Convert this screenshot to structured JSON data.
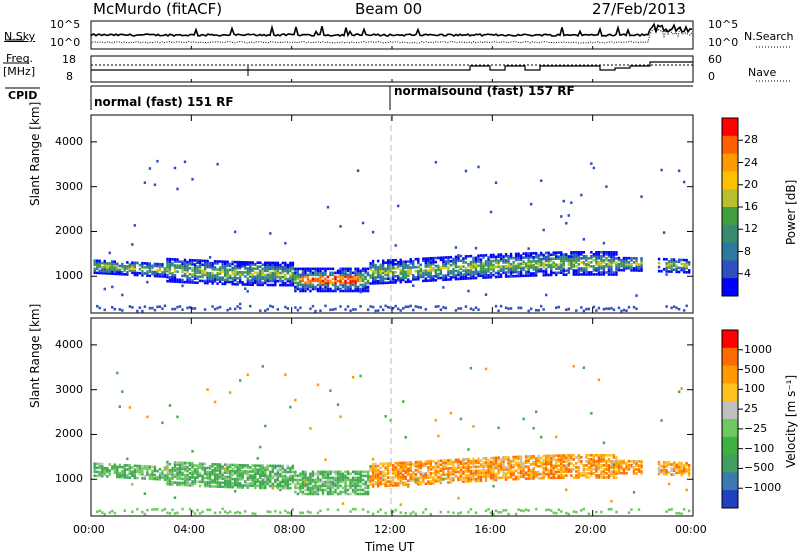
{
  "header": {
    "station": "McMurdo (fitACF)",
    "beam": "Beam 00",
    "date": "27/Feb/2013"
  },
  "nsky_panel": {
    "left_label": "N.Sky",
    "left_ticks": [
      "10^5",
      "10^0"
    ],
    "right_label": "N.Search",
    "right_ticks": [
      "10^5",
      "10^0"
    ]
  },
  "freq_panel": {
    "left_label_1": "Freq.",
    "left_label_2": "[MHz]",
    "left_ticks": [
      "18",
      "8"
    ],
    "right_label": "Nave",
    "right_ticks": [
      "60",
      "0"
    ]
  },
  "cpid_panel": {
    "label": "CPID",
    "segments": [
      {
        "text": "normal (fast) 151 RF",
        "start_hour": 0
      },
      {
        "text": "normalsound (fast) 157 RF",
        "start_hour": 12
      }
    ]
  },
  "colors": {
    "scale": [
      "#ff0000",
      "#ff6000",
      "#ff9a00",
      "#ffc000",
      "#b8c030",
      "#40a040",
      "#3a8a70",
      "#2a7aa0",
      "#3050c0",
      "#0000ff"
    ],
    "velocity": [
      "#ff0000",
      "#ff6a00",
      "#ff9a00",
      "#ffc020",
      "#c0c0c0",
      "#70c860",
      "#40b040",
      "#40a060",
      "#3a7ab0",
      "#2040c0"
    ]
  },
  "chart_data": [
    {
      "type": "heatmap",
      "name": "power",
      "xlabel": "Time UT",
      "ylabel": "Slant Range [km]",
      "xlim": [
        0,
        24
      ],
      "ylim": [
        180,
        4600
      ],
      "x_ticks": [
        "00:00",
        "04:00",
        "08:00",
        "12:00",
        "16:00",
        "20:00",
        "00:00"
      ],
      "y_ticks": [
        1000,
        2000,
        3000,
        4000
      ],
      "colorbar": {
        "label": "Power [dB]",
        "ticks": [
          "28",
          "24",
          "20",
          "16",
          "12",
          "8",
          "4"
        ]
      },
      "scatter_band_km": [
        700,
        1600
      ]
    },
    {
      "type": "heatmap",
      "name": "velocity",
      "xlabel": "Time UT",
      "ylabel": "Slant Range [km]",
      "xlim": [
        0,
        24
      ],
      "ylim": [
        180,
        4600
      ],
      "x_ticks": [
        "00:00",
        "04:00",
        "08:00",
        "12:00",
        "16:00",
        "20:00",
        "00:00"
      ],
      "y_ticks": [
        1000,
        2000,
        3000,
        4000
      ],
      "colorbar": {
        "label": "Velocity [m s⁻¹]",
        "ticks": [
          "1000",
          "500",
          "100",
          "25",
          "−25",
          "−100",
          "−500",
          "−1000"
        ]
      },
      "scatter_band_km": [
        700,
        1600
      ]
    }
  ]
}
